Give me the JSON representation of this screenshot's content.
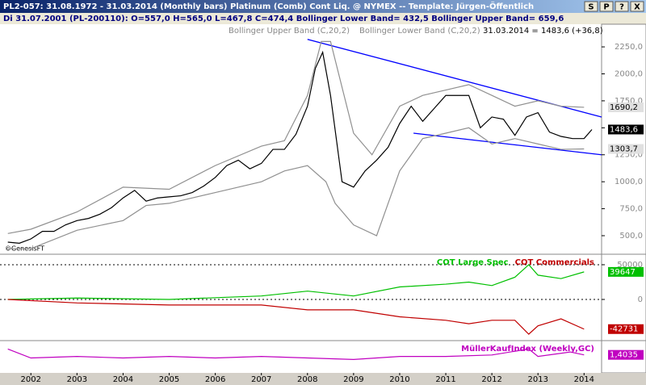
{
  "window": {
    "title": "PL2-057: 31.08.1972 - 31.03.2014 (Monthly bars)  Platinum (Comb) Cont Liq. @ NYMEX  --  Template: Jürgen-Öffentlich",
    "buttons": [
      "S",
      "P",
      "?",
      "X"
    ],
    "info_line": "Di    31.07.2001 (PL-200110): O=557,0  H=565,0  L=467,8  C=474,4  Bollinger Lower Band= 432,5  Bollinger Upper Band= 659,6",
    "last_quote": "31.03.2014 = 1483,6 (+36,8)",
    "copyright": "©GenesisFT"
  },
  "chart_data": [
    {
      "type": "line",
      "xlim": [
        2001.33,
        2014.38
      ],
      "ylim": [
        328,
        2460
      ],
      "yticks": [
        {
          "value": 500,
          "label": "500,0"
        },
        {
          "value": 750,
          "label": "750,0"
        },
        {
          "value": 1000,
          "label": "1000,0"
        },
        {
          "value": 1250,
          "label": "1250,0"
        },
        {
          "value": 1500,
          "label": "1500,0"
        },
        {
          "value": 1750,
          "label": "1750,0"
        },
        {
          "value": 2000,
          "label": "2000,0"
        },
        {
          "value": 2250,
          "label": "2250,0"
        }
      ],
      "series": [
        {
          "color": "#000000",
          "last_label": "1483,6",
          "x": [
            2001.5,
            2001.75,
            2002,
            2002.25,
            2002.5,
            2002.75,
            2003,
            2003.25,
            2003.5,
            2003.75,
            2004,
            2004.25,
            2004.5,
            2004.75,
            2005,
            2005.25,
            2005.5,
            2005.75,
            2006,
            2006.25,
            2006.5,
            2006.75,
            2007,
            2007.25,
            2007.5,
            2007.75,
            2008,
            2008.17,
            2008.33,
            2008.5,
            2008.75,
            2009,
            2009.25,
            2009.5,
            2009.75,
            2010,
            2010.25,
            2010.5,
            2010.75,
            2011,
            2011.25,
            2011.5,
            2011.75,
            2012,
            2012.25,
            2012.5,
            2012.75,
            2013,
            2013.25,
            2013.5,
            2013.75,
            2014,
            2014.17
          ],
          "values": [
            440,
            430,
            470,
            540,
            540,
            600,
            640,
            660,
            700,
            760,
            850,
            920,
            820,
            850,
            860,
            870,
            900,
            960,
            1040,
            1150,
            1200,
            1120,
            1170,
            1300,
            1300,
            1440,
            1700,
            2050,
            2200,
            1800,
            1000,
            950,
            1100,
            1200,
            1320,
            1540,
            1700,
            1560,
            1680,
            1800,
            1800,
            1800,
            1500,
            1600,
            1580,
            1430,
            1600,
            1640,
            1460,
            1420,
            1400,
            1400,
            1484
          ]
        },
        {
          "name": "Bollinger Upper Band (C,20,2)",
          "color": "#909090",
          "last_label": "1690,2",
          "x": [
            2001.5,
            2002,
            2003,
            2004,
            2005,
            2006,
            2007,
            2007.5,
            2008,
            2008.3,
            2008.5,
            2009,
            2009.4,
            2010,
            2010.5,
            2011,
            2011.5,
            2012,
            2012.5,
            2013,
            2013.5,
            2014
          ],
          "values": [
            520,
            560,
            720,
            950,
            930,
            1150,
            1330,
            1380,
            1800,
            2300,
            2300,
            1450,
            1250,
            1700,
            1800,
            1850,
            1900,
            1800,
            1700,
            1750,
            1700,
            1690
          ]
        },
        {
          "name": "Bollinger Lower Band (C,20,2)",
          "color": "#909090",
          "last_label": "1303,7",
          "x": [
            2001.5,
            2002,
            2003,
            2004,
            2004.5,
            2005,
            2006,
            2007,
            2007.5,
            2008,
            2008.4,
            2008.6,
            2009,
            2009.5,
            2010,
            2010.5,
            2011,
            2011.5,
            2012,
            2012.5,
            2013,
            2013.5,
            2014
          ],
          "values": [
            380,
            380,
            550,
            640,
            780,
            800,
            900,
            1000,
            1100,
            1150,
            1000,
            800,
            600,
            500,
            1100,
            1400,
            1450,
            1500,
            1350,
            1400,
            1350,
            1300,
            1304
          ]
        }
      ],
      "trendlines": [
        {
          "color": "#0000ff",
          "x": [
            2008.0,
            2014.38
          ],
          "values": [
            2320,
            1600
          ]
        },
        {
          "color": "#0000ff",
          "x": [
            2010.3,
            2014.38
          ],
          "values": [
            1450,
            1250
          ]
        }
      ]
    },
    {
      "type": "line",
      "xlim": [
        2001.33,
        2014.38
      ],
      "ylim": [
        -59300,
        61600
      ],
      "yticks": [
        0,
        50000
      ],
      "series": [
        {
          "name": "COT Large Spec",
          "color": "#00c000",
          "last_label": "39647",
          "x": [
            2001.5,
            2003,
            2005,
            2007,
            2008,
            2009,
            2010,
            2011,
            2011.5,
            2012,
            2012.5,
            2012.8,
            2013,
            2013.5,
            2014
          ],
          "values": [
            0,
            2000,
            0,
            5000,
            12000,
            5000,
            18000,
            22000,
            25000,
            20000,
            32000,
            50000,
            35000,
            30000,
            39647
          ]
        },
        {
          "name": "COT Commercials",
          "color": "#c00000",
          "last_label": "-42731",
          "x": [
            2001.5,
            2003,
            2005,
            2007,
            2008,
            2009,
            2010,
            2011,
            2011.5,
            2012,
            2012.5,
            2012.8,
            2013,
            2013.5,
            2014
          ],
          "values": [
            0,
            -5000,
            -8000,
            -8000,
            -15000,
            -15000,
            -25000,
            -30000,
            -35000,
            -30000,
            -30000,
            -50000,
            -38000,
            -28000,
            -42731
          ]
        }
      ]
    },
    {
      "type": "line",
      "xlim": [
        2001.33,
        2014.38
      ],
      "ylim": [
        0.8,
        1.8
      ],
      "xticks": [
        2002,
        2003,
        2004,
        2005,
        2006,
        2007,
        2008,
        2009,
        2010,
        2011,
        2012,
        2013,
        2014
      ],
      "series": [
        {
          "name": "MüllerKaufIndex (Weekly,GC)",
          "color": "#c000c0",
          "last_label": "1,4035",
          "x": [
            2001.5,
            2002,
            2003,
            2004,
            2005,
            2006,
            2007,
            2008,
            2009,
            2010,
            2011,
            2012,
            2012.8,
            2013,
            2013.7,
            2014
          ],
          "values": [
            1.6,
            1.3,
            1.35,
            1.3,
            1.35,
            1.3,
            1.35,
            1.3,
            1.25,
            1.35,
            1.35,
            1.4,
            1.6,
            1.35,
            1.5,
            1.4035
          ]
        }
      ]
    }
  ]
}
